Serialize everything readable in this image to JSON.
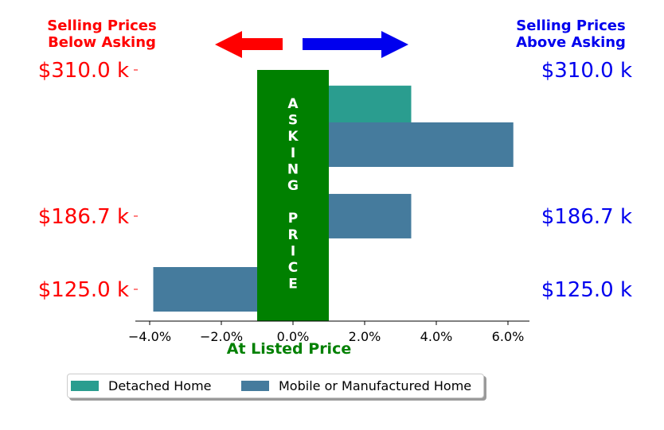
{
  "header": {
    "left_line1": "Selling Prices",
    "left_line2": "Below Asking",
    "right_line1": "Selling Prices",
    "right_line2": "Above Asking"
  },
  "colors": {
    "below": "#ff0000",
    "above": "#0000ee",
    "asking": "#008000",
    "detached": "#2a9d8f",
    "mobile": "#457b9d"
  },
  "icons": [
    "left-arrow-icon",
    "right-arrow-icon"
  ],
  "chart_data": {
    "type": "bar",
    "orientation": "horizontal",
    "xlabel": "At Listed Price",
    "xlim": [
      -4.4,
      6.6
    ],
    "ylim": [
      100,
      335
    ],
    "grid": false,
    "x_ticks": [
      {
        "value": -4.0,
        "label": "−4.0%"
      },
      {
        "value": -2.0,
        "label": "−2.0%"
      },
      {
        "value": 0.0,
        "label": "0.0%"
      },
      {
        "value": 2.0,
        "label": "2.0%"
      },
      {
        "value": 4.0,
        "label": "4.0%"
      },
      {
        "value": 6.0,
        "label": "6.0%"
      }
    ],
    "y_ticks": [
      {
        "value": 310.0,
        "label": "$310.0 k"
      },
      {
        "value": 186.7,
        "label": "$186.7 k"
      },
      {
        "value": 125.0,
        "label": "$125.0 k"
      }
    ],
    "asking_band": {
      "text": "ASKING PRICE",
      "x_range": [
        -1.0,
        1.0
      ]
    },
    "series": [
      {
        "name": "Detached Home",
        "color": "#2a9d8f",
        "points": [
          {
            "price": 278.0,
            "value": 3.3
          }
        ]
      },
      {
        "name": "Mobile or Manufactured Home",
        "color": "#457b9d",
        "points": [
          {
            "price": 247.0,
            "value": 6.15
          },
          {
            "price": 186.7,
            "value": 3.3
          },
          {
            "price": 125.0,
            "value": -3.9
          }
        ]
      }
    ],
    "legend": {
      "position": "bottom",
      "entries": [
        "Detached Home",
        "Mobile or Manufactured Home"
      ]
    }
  }
}
